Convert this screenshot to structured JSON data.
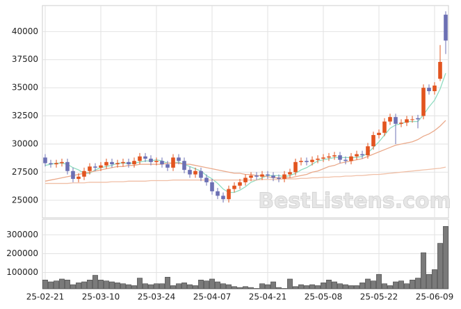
{
  "chart_data": {
    "type": "candlestick",
    "watermark": "BestListens.com",
    "categories": [
      "25-02-21",
      null,
      null,
      null,
      null,
      null,
      null,
      null,
      null,
      null,
      "25-03-10",
      null,
      null,
      null,
      null,
      null,
      null,
      null,
      null,
      null,
      "25-03-24",
      null,
      null,
      null,
      null,
      null,
      null,
      null,
      null,
      null,
      "25-04-07",
      null,
      null,
      null,
      null,
      null,
      null,
      null,
      null,
      null,
      "25-04-21",
      null,
      null,
      null,
      null,
      null,
      null,
      null,
      null,
      null,
      "25-05-08",
      null,
      null,
      null,
      null,
      null,
      null,
      null,
      null,
      null,
      "25-05-22",
      null,
      null,
      null,
      null,
      null,
      null,
      null,
      null,
      null,
      "25-06-09",
      null,
      null
    ],
    "open": [
      28800,
      28300,
      28200,
      28300,
      28400,
      27600,
      26900,
      27100,
      27600,
      28000,
      27900,
      28100,
      28400,
      28200,
      28300,
      28400,
      28200,
      28500,
      28900,
      28700,
      28400,
      28500,
      28200,
      27900,
      28800,
      28500,
      27700,
      27300,
      27600,
      27000,
      26600,
      25800,
      25400,
      25100,
      26000,
      26300,
      26600,
      27000,
      27200,
      27100,
      27300,
      27200,
      27000,
      26900,
      27300,
      27500,
      28400,
      28500,
      28400,
      28600,
      28700,
      28800,
      28900,
      29000,
      28600,
      28500,
      28900,
      29100,
      29000,
      29800,
      30800,
      31000,
      32000,
      32400,
      31800,
      31900,
      32200,
      32300,
      32500,
      35000,
      34700,
      35800,
      41500
    ],
    "high": [
      29100,
      28600,
      28600,
      28700,
      28700,
      27900,
      27400,
      27900,
      28300,
      28300,
      28400,
      28700,
      28700,
      28600,
      28700,
      28700,
      28800,
      29200,
      29200,
      29000,
      28800,
      28800,
      28500,
      29100,
      29100,
      28800,
      28000,
      27900,
      27900,
      27300,
      26900,
      26100,
      25700,
      26300,
      26600,
      26900,
      27300,
      27500,
      27500,
      27600,
      27600,
      27500,
      27300,
      27600,
      27800,
      28700,
      28800,
      28800,
      28900,
      29000,
      29100,
      29200,
      29300,
      29300,
      28900,
      29200,
      29400,
      29400,
      30100,
      31100,
      31300,
      32300,
      32700,
      32700,
      32200,
      32500,
      32500,
      32600,
      35300,
      35300,
      35500,
      38800,
      41800
    ],
    "low": [
      28000,
      27900,
      27900,
      28000,
      27300,
      26600,
      26600,
      26800,
      27300,
      27600,
      27600,
      27800,
      27900,
      27900,
      28000,
      27900,
      27900,
      28200,
      28400,
      28100,
      28100,
      27900,
      27600,
      27600,
      28200,
      27400,
      27000,
      27000,
      26700,
      26300,
      25500,
      25100,
      24800,
      24800,
      25700,
      26000,
      26300,
      26700,
      26800,
      26800,
      26900,
      26700,
      26600,
      26600,
      27000,
      27200,
      28100,
      28100,
      28100,
      28300,
      28400,
      28500,
      28600,
      28300,
      28200,
      28200,
      28600,
      28700,
      28700,
      29500,
      30500,
      30700,
      31700,
      30000,
      31500,
      31600,
      31900,
      31400,
      32200,
      34400,
      34400,
      35600,
      38000
    ],
    "close": [
      28300,
      28200,
      28300,
      28400,
      27600,
      26900,
      27100,
      27600,
      28000,
      27900,
      28100,
      28400,
      28200,
      28300,
      28400,
      28200,
      28500,
      28900,
      28700,
      28400,
      28500,
      28200,
      27900,
      28800,
      28500,
      27700,
      27300,
      27600,
      27000,
      26600,
      25800,
      25400,
      25100,
      26000,
      26300,
      26600,
      27000,
      27200,
      27100,
      27300,
      27200,
      27000,
      26900,
      27300,
      27500,
      28400,
      28500,
      28400,
      28600,
      28700,
      28800,
      28900,
      29000,
      28600,
      28500,
      28900,
      29100,
      29000,
      29800,
      30800,
      31000,
      32000,
      32400,
      31800,
      31900,
      32200,
      32200,
      32200,
      35000,
      34700,
      35200,
      37300,
      39200
    ],
    "up_color": "#e2541f",
    "down_color": "#6c70b4",
    "ylim": [
      23440,
      42310
    ],
    "yticks": [
      25000,
      27500,
      30000,
      32500,
      35000,
      37500,
      40000
    ],
    "grid": true,
    "lines": [
      {
        "color": "#8fdcc0",
        "values": [
          28100,
          28200,
          28300,
          28300,
          28200,
          27900,
          27700,
          27400,
          27400,
          27700,
          27900,
          28000,
          28100,
          28300,
          28300,
          28300,
          28300,
          28400,
          28500,
          28500,
          28600,
          28500,
          28300,
          28300,
          28400,
          28200,
          28000,
          27800,
          27600,
          27200,
          26900,
          26500,
          26000,
          25700,
          25700,
          25900,
          26200,
          26600,
          26800,
          27000,
          27200,
          27200,
          27200,
          27100,
          27200,
          27400,
          27700,
          27900,
          28200,
          28500,
          28600,
          28700,
          28800,
          28800,
          28800,
          28800,
          28800,
          28900,
          29200,
          29700,
          30200,
          30800,
          31400,
          31700,
          31800,
          32000,
          32000,
          32000,
          32600,
          33300,
          33900,
          34900,
          36300
        ]
      },
      {
        "color": "#eaa98a",
        "values": [
          26700,
          26800,
          26900,
          27000,
          27100,
          27200,
          27300,
          27400,
          27500,
          27600,
          27700,
          27800,
          27900,
          28000,
          28000,
          28100,
          28100,
          28200,
          28200,
          28200,
          28200,
          28200,
          28300,
          28300,
          28300,
          28200,
          28200,
          28100,
          28000,
          27900,
          27800,
          27700,
          27600,
          27500,
          27400,
          27400,
          27300,
          27300,
          27200,
          27200,
          27100,
          27000,
          27000,
          27000,
          27000,
          27100,
          27200,
          27300,
          27500,
          27600,
          27800,
          28000,
          28100,
          28300,
          28400,
          28500,
          28600,
          28700,
          28900,
          29100,
          29300,
          29500,
          29700,
          29900,
          30000,
          30100,
          30200,
          30400,
          30700,
          30900,
          31200,
          31600,
          32100
        ]
      },
      {
        "color": "#f0bfa6",
        "values": [
          26500,
          26500,
          26500,
          26500,
          26500,
          26550,
          26550,
          26550,
          26600,
          26600,
          26600,
          26600,
          26650,
          26650,
          26650,
          26700,
          26700,
          26700,
          26700,
          26750,
          26750,
          26750,
          26750,
          26800,
          26800,
          26800,
          26800,
          26800,
          26800,
          26800,
          26800,
          26800,
          26800,
          26800,
          26800,
          26800,
          26800,
          26800,
          26800,
          26850,
          26850,
          26850,
          26850,
          26900,
          26900,
          26900,
          26950,
          26950,
          27000,
          27000,
          27050,
          27050,
          27100,
          27100,
          27150,
          27150,
          27200,
          27200,
          27250,
          27300,
          27300,
          27350,
          27400,
          27450,
          27500,
          27550,
          27600,
          27650,
          27700,
          27750,
          27800,
          27850,
          27950
        ]
      }
    ],
    "volume": {
      "color": "#7a7a7a",
      "ylim": [
        13000,
        383000
      ],
      "yticks": [
        100000,
        200000,
        300000
      ],
      "values": [
        60000,
        50000,
        55000,
        65000,
        60000,
        35000,
        45000,
        50000,
        60000,
        85000,
        60000,
        55000,
        50000,
        45000,
        40000,
        35000,
        30000,
        70000,
        40000,
        35000,
        40000,
        40000,
        75000,
        30000,
        40000,
        45000,
        35000,
        30000,
        60000,
        55000,
        65000,
        50000,
        40000,
        35000,
        25000,
        20000,
        25000,
        20000,
        15000,
        40000,
        35000,
        50000,
        20000,
        15000,
        65000,
        25000,
        35000,
        30000,
        35000,
        30000,
        45000,
        60000,
        50000,
        40000,
        35000,
        30000,
        30000,
        45000,
        65000,
        55000,
        90000,
        40000,
        30000,
        50000,
        55000,
        40000,
        60000,
        70000,
        205000,
        90000,
        115000,
        255000,
        345000
      ]
    }
  }
}
